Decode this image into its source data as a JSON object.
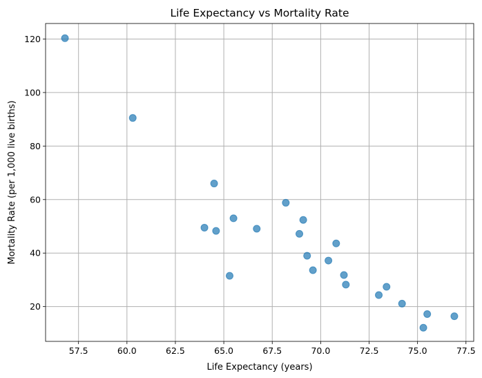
{
  "chart_data": {
    "type": "scatter",
    "title": "Life Expectancy vs Mortality Rate",
    "xlabel": "Life Expectancy (years)",
    "ylabel": "Mortality Rate (per 1,000 live births)",
    "xlim": [
      55.8,
      77.9
    ],
    "ylim": [
      7.0,
      125.8
    ],
    "xticks": [
      57.5,
      60.0,
      62.5,
      65.0,
      67.5,
      70.0,
      72.5,
      75.0,
      77.5
    ],
    "xtick_labels": [
      "57.5",
      "60.0",
      "62.5",
      "65.0",
      "67.5",
      "70.0",
      "72.5",
      "75.0",
      "77.5"
    ],
    "yticks": [
      20,
      40,
      60,
      80,
      100,
      120
    ],
    "ytick_labels": [
      "20",
      "40",
      "60",
      "80",
      "100",
      "120"
    ],
    "grid": true,
    "marker_color": "#1f77b4",
    "points": [
      {
        "x": 56.8,
        "y": 120.3
      },
      {
        "x": 60.3,
        "y": 90.5
      },
      {
        "x": 64.5,
        "y": 66.0
      },
      {
        "x": 64.0,
        "y": 49.5
      },
      {
        "x": 64.6,
        "y": 48.3
      },
      {
        "x": 65.5,
        "y": 53.0
      },
      {
        "x": 65.3,
        "y": 31.5
      },
      {
        "x": 66.7,
        "y": 49.1
      },
      {
        "x": 68.2,
        "y": 58.8
      },
      {
        "x": 69.1,
        "y": 52.4
      },
      {
        "x": 68.9,
        "y": 47.2
      },
      {
        "x": 69.3,
        "y": 39.0
      },
      {
        "x": 69.6,
        "y": 33.6
      },
      {
        "x": 70.4,
        "y": 37.2
      },
      {
        "x": 70.8,
        "y": 43.6
      },
      {
        "x": 71.2,
        "y": 31.8
      },
      {
        "x": 71.3,
        "y": 28.2
      },
      {
        "x": 73.0,
        "y": 24.3
      },
      {
        "x": 73.4,
        "y": 27.4
      },
      {
        "x": 74.2,
        "y": 21.1
      },
      {
        "x": 75.3,
        "y": 12.1
      },
      {
        "x": 75.5,
        "y": 17.2
      },
      {
        "x": 76.9,
        "y": 16.4
      }
    ]
  }
}
